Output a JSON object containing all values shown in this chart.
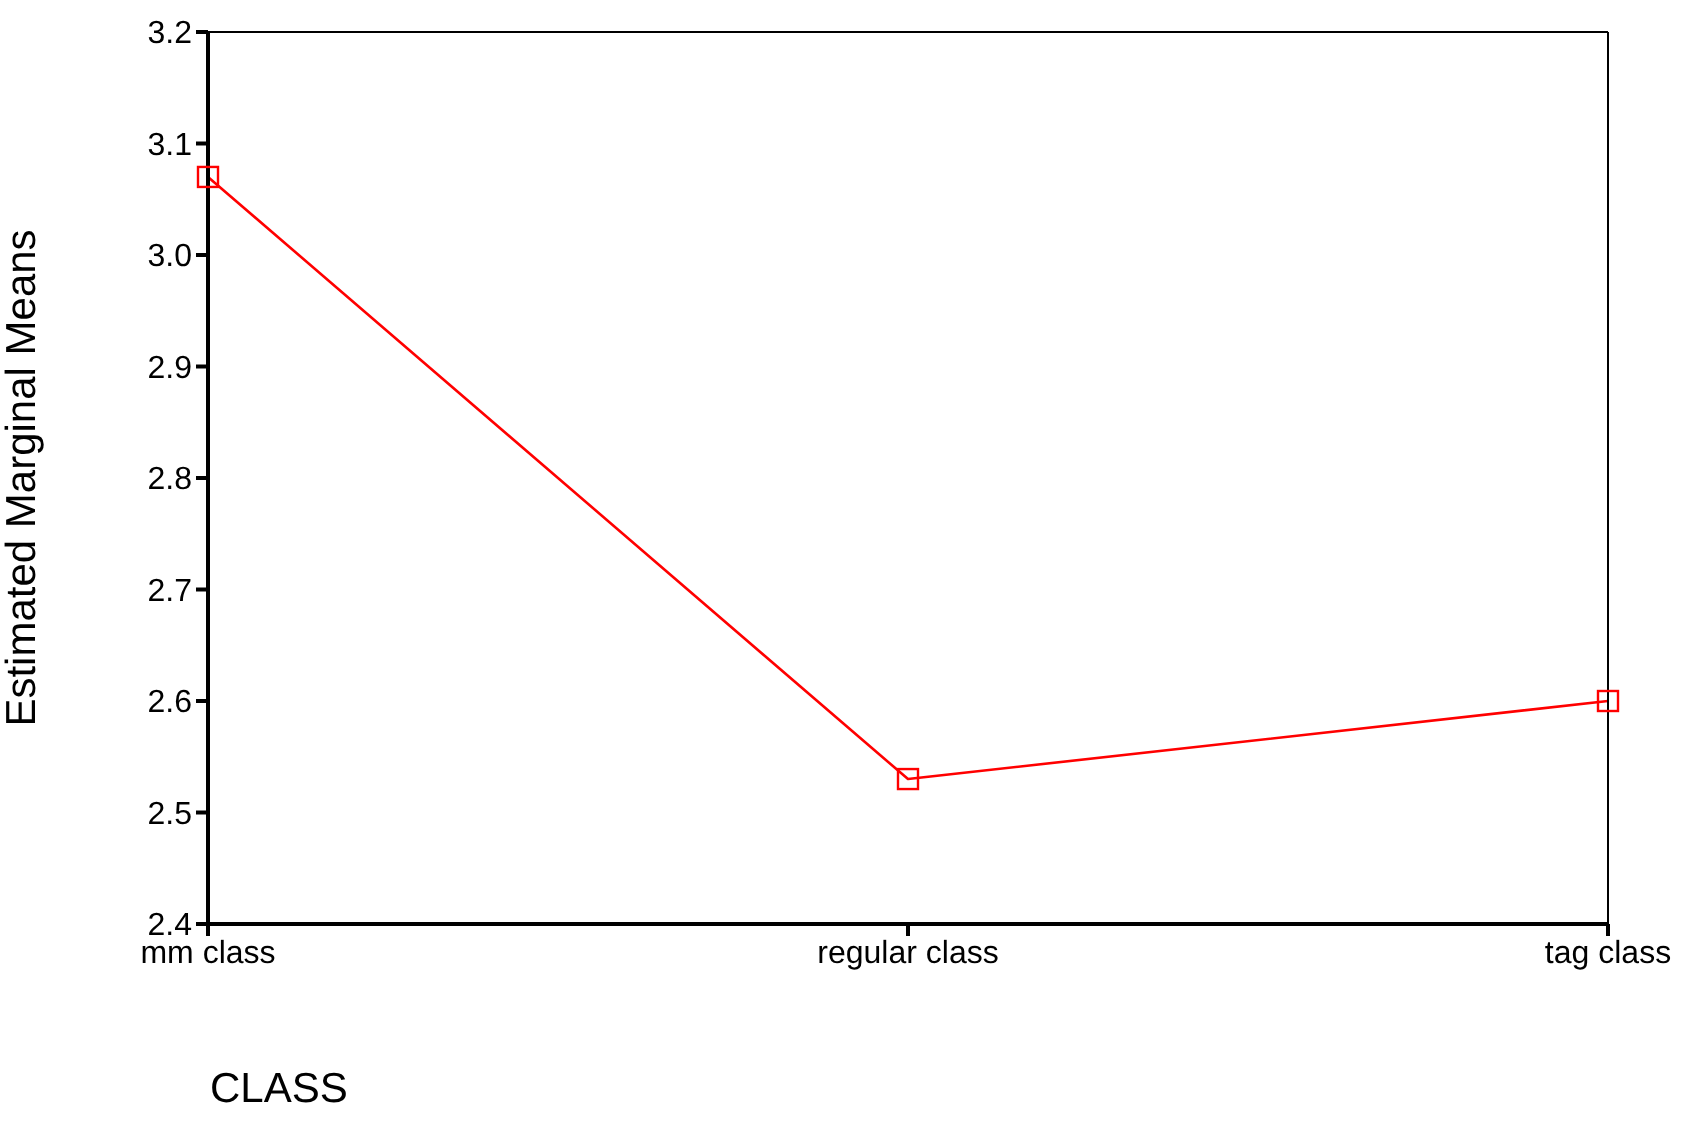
{
  "chart_data": {
    "type": "line",
    "xlabel": "CLASS",
    "ylabel": "Estimated Marginal Means",
    "categories": [
      "mm class",
      "regular class",
      "tag class"
    ],
    "series": [
      {
        "color": "#ff0000",
        "values": [
          3.07,
          2.53,
          2.6
        ]
      }
    ],
    "ylim": [
      2.4,
      3.2
    ],
    "yticks": [
      2.4,
      2.5,
      2.6,
      2.7,
      2.8,
      2.9,
      {
        "value": 3,
        "label": "3.0"
      },
      3.1,
      3.2
    ],
    "marker": "square",
    "grid": false,
    "legend": false
  }
}
